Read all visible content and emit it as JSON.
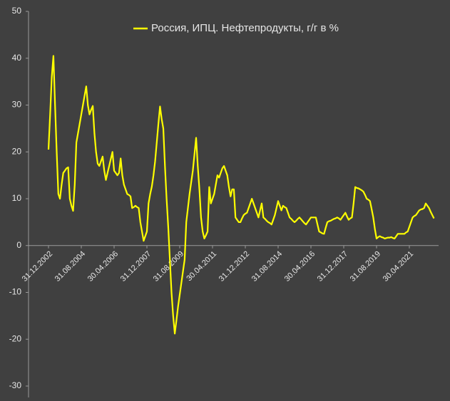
{
  "chart_data": {
    "type": "line",
    "categories": [
      "31.12.2002",
      null,
      null,
      null,
      null,
      null,
      null,
      null,
      null,
      null,
      null,
      null,
      null,
      null,
      null,
      null,
      null,
      null,
      null,
      null,
      "31.08.2004",
      null,
      null,
      null,
      null,
      null,
      null,
      null,
      null,
      null,
      null,
      null,
      null,
      null,
      null,
      null,
      null,
      null,
      null,
      null,
      "30.04.2006",
      null,
      null,
      null,
      null,
      null,
      null,
      null,
      null,
      null,
      null,
      null,
      null,
      null,
      null,
      null,
      null,
      null,
      null,
      null,
      "31.12.2007",
      null,
      null,
      null,
      null,
      null,
      null,
      null,
      null,
      null,
      null,
      null,
      null,
      null,
      null,
      null,
      null,
      null,
      null,
      null,
      "31.08.2009",
      null,
      null,
      null,
      null,
      null,
      null,
      null,
      null,
      null,
      null,
      null,
      null,
      null,
      null,
      null,
      null,
      null,
      null,
      null,
      "30.04.2011",
      null,
      null,
      null,
      null,
      null,
      null,
      null,
      null,
      null,
      null,
      null,
      null,
      null,
      null,
      null,
      null,
      null,
      null,
      null,
      "31.12.2012",
      null,
      null,
      null,
      null,
      null,
      null,
      null,
      null,
      null,
      null,
      null,
      null,
      null,
      null,
      null,
      null,
      null,
      null,
      null,
      "31.08.2014",
      null,
      null,
      null,
      null,
      null,
      null,
      null,
      null,
      null,
      null,
      null,
      null,
      null,
      null,
      null,
      null,
      null,
      null,
      null,
      "30.04.2016",
      null,
      null,
      null,
      null,
      null,
      null,
      null,
      null,
      null,
      null,
      null,
      null,
      null,
      null,
      null,
      null,
      null,
      null,
      null,
      "31.12.2017",
      null,
      null,
      null,
      null,
      null,
      null,
      null,
      null,
      null,
      null,
      null,
      null,
      null,
      null,
      null,
      null,
      null,
      null,
      null,
      "31.08.2019",
      null,
      null,
      null,
      null,
      null,
      null,
      null,
      null,
      null,
      null,
      null,
      null,
      null,
      null,
      null,
      null,
      null,
      null,
      null,
      "30.04.2021",
      null,
      null,
      null,
      null,
      null,
      null,
      null,
      null,
      null,
      null,
      null,
      null,
      null,
      null,
      null
    ],
    "series": [
      {
        "name": "Россия, ИПЦ. Нефтепродукты, г/г в %",
        "color": "#ffff00",
        "values": [
          20.5,
          28,
          36,
          40.5,
          30,
          20,
          11,
          10,
          13,
          15.5,
          16,
          16.5,
          16.7,
          10,
          8.5,
          7.4,
          13,
          22,
          24,
          26,
          28,
          30,
          32,
          34,
          30,
          28,
          29,
          29.8,
          24,
          20,
          17.5,
          17,
          18,
          19,
          16,
          14,
          15.5,
          17,
          18.5,
          20,
          16,
          15.5,
          15,
          15.5,
          18.6,
          15,
          13,
          12,
          11,
          10.8,
          10.5,
          8,
          8.2,
          8.5,
          8.2,
          8,
          5,
          3,
          1,
          2,
          3,
          9,
          11,
          12.6,
          15,
          18,
          22,
          26,
          29.7,
          27,
          25,
          17,
          10,
          4,
          -3,
          -10,
          -15,
          -18.8,
          -16,
          -13,
          -10.5,
          -8,
          -5.5,
          -3,
          5,
          8,
          11,
          13.5,
          16,
          19.5,
          23,
          17,
          12,
          6,
          3,
          1.5,
          2.2,
          3,
          12.5,
          9,
          10,
          11,
          13,
          15,
          14.5,
          15.5,
          16.5,
          17,
          16,
          15,
          12.5,
          10.5,
          12,
          12,
          6,
          5.5,
          5,
          5,
          5.8,
          6.5,
          6.8,
          7,
          8,
          9,
          10,
          9,
          8,
          7,
          6,
          7.5,
          9,
          6,
          5.7,
          5.3,
          5,
          4.8,
          4.5,
          5.5,
          6.5,
          8,
          9.5,
          8.5,
          7.5,
          8.5,
          8.2,
          8,
          7,
          6,
          5.7,
          5.3,
          5,
          5.3,
          5.7,
          6,
          5.6,
          5.2,
          4.8,
          4.5,
          5,
          5.5,
          6,
          6,
          6,
          6,
          4.5,
          3,
          2.8,
          2.6,
          2.5,
          3.8,
          5,
          5.2,
          5.3,
          5.5,
          5.7,
          5.8,
          6,
          5.8,
          5.5,
          6,
          6.5,
          7,
          6.2,
          5.5,
          5.8,
          6,
          9,
          12.5,
          12.3,
          12.2,
          12,
          11.8,
          11.5,
          10.8,
          10,
          9.8,
          9.5,
          7.8,
          6,
          3.5,
          1.5,
          1.8,
          2,
          1.8,
          1.7,
          1.5,
          1.6,
          1.7,
          1.7,
          1.8,
          1.6,
          1.5,
          2,
          2.5,
          2.5,
          2.5,
          2.5,
          2.5,
          2.8,
          3,
          4,
          5,
          6,
          6.3,
          6.5,
          7,
          7.5,
          7.7,
          7.8,
          8,
          9,
          8.5,
          8,
          7.2,
          6.5,
          5.8
        ]
      }
    ],
    "ylim": [
      -30,
      50
    ],
    "yticks": [
      -30,
      -20,
      -10,
      0,
      10,
      20,
      30,
      40,
      50
    ],
    "legend": "top"
  }
}
